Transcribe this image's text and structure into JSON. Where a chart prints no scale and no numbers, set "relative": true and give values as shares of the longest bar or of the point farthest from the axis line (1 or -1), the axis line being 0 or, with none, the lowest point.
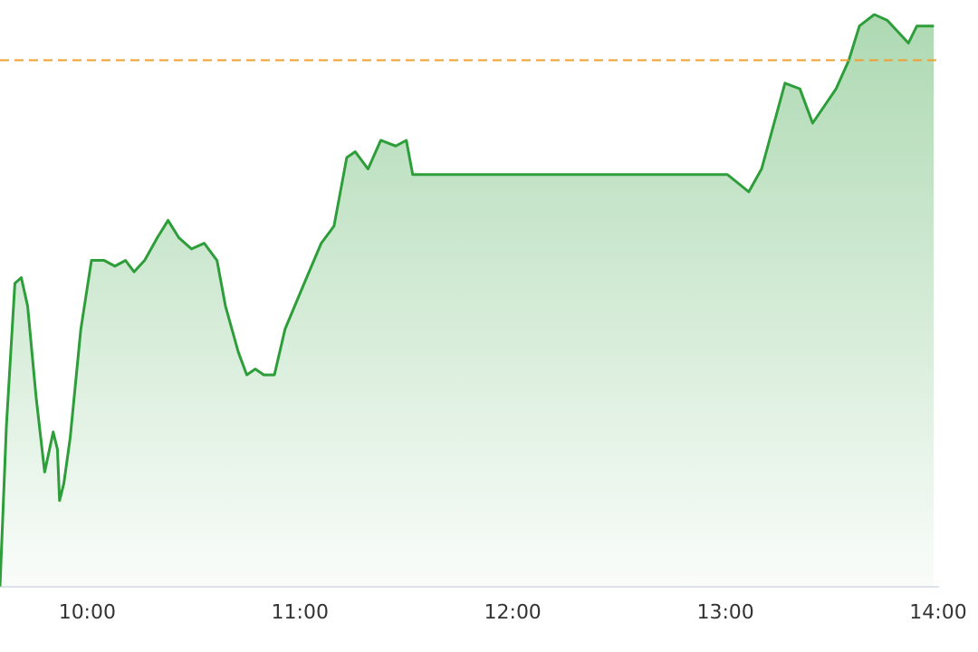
{
  "chart_data": {
    "type": "area",
    "relative": true,
    "x": [
      9.59,
      9.62,
      9.66,
      9.69,
      9.72,
      9.76,
      9.8,
      9.84,
      9.86,
      9.87,
      9.89,
      9.92,
      9.97,
      10.02,
      10.08,
      10.13,
      10.18,
      10.22,
      10.27,
      10.33,
      10.38,
      10.43,
      10.49,
      10.55,
      10.61,
      10.65,
      10.71,
      10.75,
      10.79,
      10.83,
      10.88,
      10.93,
      11.02,
      11.1,
      11.16,
      11.22,
      11.26,
      11.32,
      11.38,
      11.45,
      11.5,
      11.53,
      12.03,
      13.01,
      13.11,
      13.17,
      13.28,
      13.35,
      13.41,
      13.52,
      13.58,
      13.63,
      13.7,
      13.76,
      13.86,
      13.9,
      13.98
    ],
    "series": [
      {
        "color": "#2e9e3a",
        "values": [
          0,
          0.28,
          0.53,
          0.54,
          0.49,
          0.33,
          0.2,
          0.27,
          0.24,
          0.15,
          0.18,
          0.26,
          0.45,
          0.57,
          0.57,
          0.56,
          0.57,
          0.55,
          0.57,
          0.61,
          0.64,
          0.61,
          0.59,
          0.6,
          0.57,
          0.49,
          0.41,
          0.37,
          0.38,
          0.37,
          0.37,
          0.45,
          0.53,
          0.6,
          0.63,
          0.75,
          0.76,
          0.73,
          0.78,
          0.77,
          0.78,
          0.72,
          0.72,
          0.72,
          0.69,
          0.73,
          0.88,
          0.87,
          0.81,
          0.87,
          0.92,
          0.98,
          1,
          0.99,
          0.95,
          0.98,
          0.98
        ]
      }
    ],
    "xlim": [
      9.59,
      14
    ],
    "xticks": [
      {
        "value": 10,
        "label": "10:00"
      },
      {
        "value": 11,
        "label": "11:00"
      },
      {
        "value": 12,
        "label": "12:00"
      },
      {
        "value": 13,
        "label": "13:00"
      },
      {
        "value": 14,
        "label": "14:00"
      }
    ],
    "ref_lines": [
      {
        "axis": "y",
        "value": 0.92,
        "color": "#f0a030",
        "line_style": "dashed"
      }
    ],
    "legend": false,
    "marker": "none",
    "line_style": "solid"
  }
}
